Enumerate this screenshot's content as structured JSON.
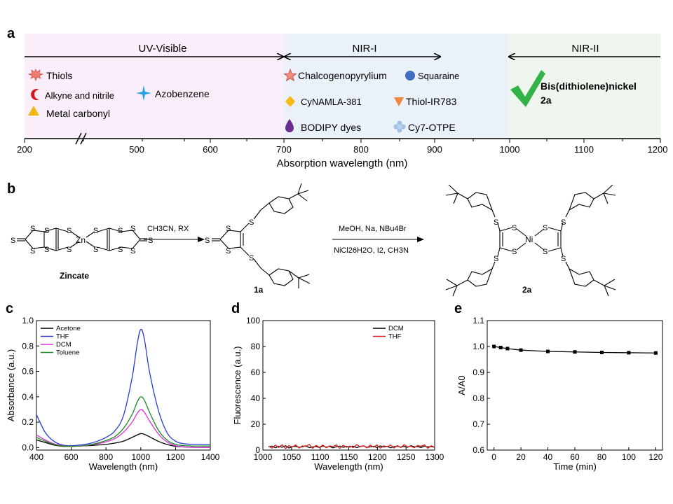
{
  "panel_a": {
    "letter": "a",
    "regions": [
      {
        "label": "UV-Visible",
        "color": "#fbeefb"
      },
      {
        "label": "NIR-I",
        "color": "#eaf1f9"
      },
      {
        "label": "NIR-II",
        "color": "#eef6ee"
      }
    ],
    "entries": [
      {
        "label": "Thiols",
        "icon": "starburst-icon",
        "color": "#f07f74"
      },
      {
        "label": "Alkyne and nitrile",
        "icon": "crescent-icon",
        "color": "#d9141b"
      },
      {
        "label": "Azobenzene",
        "icon": "four-point-star-icon",
        "color": "#2aa1e0"
      },
      {
        "label": "Metal carbonyl",
        "icon": "triangle-icon",
        "color": "#f3b513"
      },
      {
        "label": "Chalcogenopyrylium",
        "icon": "star-icon",
        "color": "#f08a7a"
      },
      {
        "label": "Squaraine",
        "icon": "circle-icon",
        "color": "#3f6fbe"
      },
      {
        "label": "CyNAMLA-381",
        "icon": "diamond-icon",
        "color": "#f5bb13"
      },
      {
        "label": "Thiol-IR783",
        "icon": "down-triangle-icon",
        "color": "#f0873a"
      },
      {
        "label": "BODIPY dyes",
        "icon": "drop-icon",
        "color": "#6b2c91"
      },
      {
        "label": "Cy7-OTPE",
        "icon": "flower-icon",
        "color": "#9fc1e6"
      },
      {
        "label": "Bis(dithiolene)nickel",
        "icon": "checkmark-icon",
        "color": "#33b24a"
      }
    ],
    "compound_label": "2a",
    "axis_ticks": [
      "200",
      "500",
      "600",
      "700",
      "800",
      "900",
      "1000",
      "1100",
      "1200"
    ],
    "xlabel": "Absorption wavelength (nm)"
  },
  "panel_b": {
    "letter": "b",
    "zn": "Zn",
    "ni": "Ni",
    "s_atom": "S",
    "step1_reagents": "CH3CN, RX",
    "step2_line1": "MeOH, Na, NBu4Br",
    "step2_line2": "NiCl26H2O, I2, CH3N",
    "label_zincate": "Zincate",
    "label_1a": "1a",
    "label_2a": "2a"
  },
  "chart_data": [
    {
      "panel": "c",
      "type": "line",
      "xlabel": "Wavelength (nm)",
      "ylabel": "Absorbance (a.u.)",
      "xlim": [
        400,
        1400
      ],
      "ylim": [
        -0.02,
        1.0
      ],
      "xticks": [
        400,
        600,
        800,
        1000,
        1200,
        1400
      ],
      "yticks": [
        0.0,
        0.2,
        0.4,
        0.6,
        0.8,
        1.0
      ],
      "legend": "top-left",
      "series": [
        {
          "name": "Acetone",
          "color": "#000000",
          "x": [
            400,
            450,
            500,
            550,
            600,
            650,
            700,
            750,
            800,
            850,
            900,
            950,
            980,
            1000,
            1020,
            1050,
            1100,
            1150,
            1200,
            1250,
            1300,
            1350,
            1400
          ],
          "y": [
            0.06,
            0.04,
            0.02,
            0.01,
            0.01,
            0.012,
            0.015,
            0.02,
            0.025,
            0.035,
            0.05,
            0.08,
            0.1,
            0.11,
            0.105,
            0.085,
            0.05,
            0.025,
            0.01,
            0.005,
            0.002,
            0.001,
            0.0
          ]
        },
        {
          "name": "THF",
          "color": "#2b3cd6",
          "x": [
            400,
            450,
            500,
            550,
            600,
            650,
            700,
            750,
            800,
            850,
            900,
            950,
            980,
            1000,
            1020,
            1050,
            1100,
            1150,
            1200,
            1250,
            1300,
            1350,
            1400
          ],
          "y": [
            0.26,
            0.12,
            0.05,
            0.02,
            0.015,
            0.02,
            0.03,
            0.05,
            0.08,
            0.13,
            0.25,
            0.55,
            0.82,
            0.93,
            0.86,
            0.6,
            0.3,
            0.12,
            0.05,
            0.03,
            0.025,
            0.025,
            0.025
          ]
        },
        {
          "name": "DCM",
          "color": "#e030d8",
          "x": [
            400,
            450,
            500,
            550,
            600,
            650,
            700,
            750,
            800,
            850,
            900,
            950,
            980,
            1000,
            1020,
            1050,
            1100,
            1150,
            1200,
            1250,
            1300,
            1350,
            1400
          ],
          "y": [
            0.1,
            0.06,
            0.03,
            0.015,
            0.01,
            0.012,
            0.018,
            0.03,
            0.045,
            0.07,
            0.12,
            0.2,
            0.27,
            0.3,
            0.28,
            0.21,
            0.11,
            0.045,
            0.015,
            0.005,
            0.002,
            0.001,
            0.0
          ]
        },
        {
          "name": "Toluene",
          "color": "#1f8a22",
          "x": [
            400,
            450,
            500,
            550,
            600,
            650,
            700,
            750,
            800,
            850,
            900,
            950,
            980,
            1000,
            1020,
            1050,
            1100,
            1150,
            1200,
            1250,
            1300,
            1350,
            1400
          ],
          "y": [
            0.08,
            0.05,
            0.025,
            0.012,
            0.01,
            0.013,
            0.02,
            0.035,
            0.055,
            0.085,
            0.15,
            0.26,
            0.36,
            0.4,
            0.375,
            0.28,
            0.14,
            0.06,
            0.025,
            0.015,
            0.012,
            0.012,
            0.012
          ]
        }
      ]
    },
    {
      "panel": "d",
      "type": "line",
      "xlabel": "Wavelength (nm)",
      "ylabel": "Fluorescence (a.u.)",
      "xlim": [
        1000,
        1300
      ],
      "ylim": [
        0,
        100
      ],
      "xticks": [
        1000,
        1050,
        1100,
        1150,
        1200,
        1250,
        1300
      ],
      "yticks": [
        0,
        20,
        40,
        60,
        80,
        100
      ],
      "legend": "top-right",
      "series": [
        {
          "name": "DCM",
          "color": "#000000",
          "x_range": [
            1010,
            1300
          ],
          "y": [
            2.5,
            3.1,
            1.8,
            2.9,
            2.2,
            3.4,
            1.6,
            2.7,
            3.0,
            2.1,
            2.6,
            3.3,
            1.9,
            2.4,
            2.8,
            2.0,
            3.2,
            2.3,
            2.9,
            1.7,
            2.6,
            3.1,
            2.2,
            2.8,
            2.4,
            3.0,
            1.9,
            2.7,
            3.3,
            2.1,
            2.5,
            2.9,
            2.0,
            3.2,
            2.4,
            2.8,
            1.8,
            2.6,
            3.0,
            2.3,
            2.9,
            2.1,
            3.4,
            2.5,
            2.7,
            2.0,
            3.1,
            2.4,
            2.8,
            2.2
          ]
        },
        {
          "name": "THF",
          "color": "#e31a1a",
          "x_range": [
            1010,
            1300
          ],
          "y": [
            3.0,
            1.5,
            3.8,
            2.0,
            4.2,
            1.2,
            3.5,
            2.4,
            4.0,
            1.6,
            3.2,
            2.8,
            4.4,
            1.4,
            3.6,
            2.1,
            3.9,
            1.8,
            3.3,
            2.6,
            4.1,
            1.3,
            3.7,
            2.2,
            3.1,
            1.9,
            4.3,
            2.5,
            3.4,
            1.7,
            3.8,
            2.3,
            4.0,
            1.5,
            3.2,
            2.7,
            3.9,
            1.6,
            3.5,
            2.0,
            4.2,
            2.4,
            3.0,
            1.8,
            3.6,
            2.9,
            4.1,
            1.4,
            3.3,
            2.2
          ]
        }
      ]
    },
    {
      "panel": "e",
      "type": "line",
      "xlabel": "Time (min)",
      "ylabel": "A/A0",
      "xlim": [
        -5,
        125
      ],
      "ylim": [
        0.6,
        1.1
      ],
      "xticks": [
        0,
        20,
        40,
        60,
        80,
        100,
        120
      ],
      "yticks": [
        0.6,
        0.7,
        0.8,
        0.9,
        1.0,
        1.1
      ],
      "series": [
        {
          "color": "#000000",
          "x": [
            0,
            5,
            10,
            20,
            40,
            60,
            80,
            100,
            120
          ],
          "y": [
            1.0,
            0.996,
            0.992,
            0.986,
            0.981,
            0.979,
            0.977,
            0.976,
            0.975
          ]
        }
      ]
    }
  ],
  "panel_letters": {
    "c": "c",
    "d": "d",
    "e": "e"
  }
}
